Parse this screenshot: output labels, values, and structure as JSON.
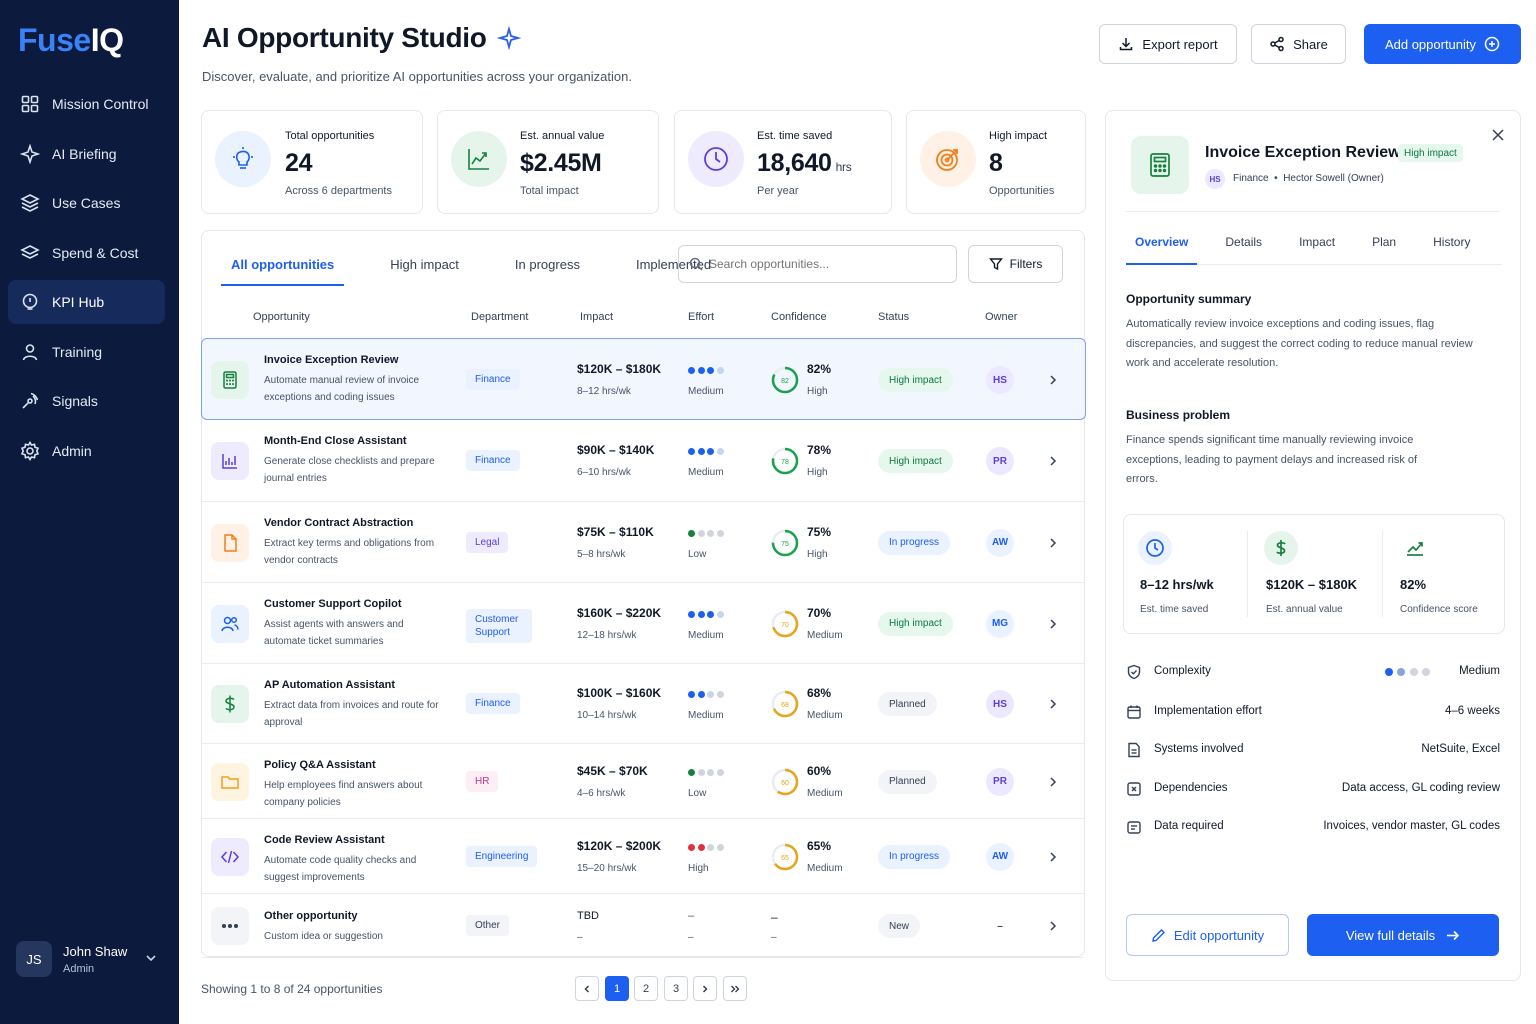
{
  "brand": {
    "part1": "Fuse",
    "part2": "IQ"
  },
  "sidebar": {
    "items": [
      {
        "label": "Mission Control",
        "icon": "grid-icon"
      },
      {
        "label": "AI Briefing",
        "icon": "sparkle-icon"
      },
      {
        "label": "Use Cases",
        "icon": "layers-icon"
      },
      {
        "label": "Spend & Cost",
        "icon": "stack-icon"
      },
      {
        "label": "KPI Hub",
        "icon": "lightbulb-icon",
        "active": true
      },
      {
        "label": "Training",
        "icon": "person-icon"
      },
      {
        "label": "Signals",
        "icon": "signal-icon"
      },
      {
        "label": "Admin",
        "icon": "gear-icon"
      }
    ],
    "user": {
      "initials": "JS",
      "name": "John Shaw",
      "role": "Admin"
    }
  },
  "header": {
    "title": "AI Opportunity Studio",
    "subtitle": "Discover, evaluate, and prioritize AI opportunities across your organization.",
    "export_label": "Export report",
    "share_label": "Share",
    "add_label": "Add opportunity"
  },
  "stats": [
    {
      "label": "Total opportunities",
      "value": "24",
      "unit": "",
      "sub": "Across 6 departments"
    },
    {
      "label": "Est. annual value",
      "value": "$2.45M",
      "unit": "",
      "sub": "Total impact"
    },
    {
      "label": "Est. time saved",
      "value": "18,640",
      "unit": "hrs",
      "sub": "Per year"
    },
    {
      "label": "High impact",
      "value": "8",
      "unit": "",
      "sub": "Opportunities"
    }
  ],
  "table": {
    "tabs": [
      "All opportunities",
      "High impact",
      "In progress",
      "Implemented"
    ],
    "search_placeholder": "Search opportunities...",
    "filters_label": "Filters",
    "columns": [
      "Opportunity",
      "Department",
      "Impact",
      "Effort",
      "Confidence",
      "Status",
      "Owner"
    ],
    "rows": [
      {
        "name": "Invoice Exception Review",
        "desc": "Automate manual review of invoice exceptions and coding issues",
        "dept": "Finance",
        "impact": "$120K – $180K",
        "hours": "8–12 hrs/wk",
        "effort": "Medium",
        "effort_level": 3,
        "confidence": 82,
        "conf_label": "82%",
        "conf_level": "High",
        "status": "High impact",
        "owner": "HS",
        "icon": "calculator-icon"
      },
      {
        "name": "Month-End Close Assistant",
        "desc": "Generate close checklists and prepare journal entries",
        "dept": "Finance",
        "impact": "$90K – $140K",
        "hours": "6–10 hrs/wk",
        "effort": "Medium",
        "effort_level": 3,
        "confidence": 78,
        "conf_label": "78%",
        "conf_level": "High",
        "status": "High impact",
        "owner": "PR",
        "icon": "chart-icon"
      },
      {
        "name": "Vendor Contract Abstraction",
        "desc": "Extract key terms and obligations from vendor contracts",
        "dept": "Legal",
        "impact": "$75K – $110K",
        "hours": "5–8 hrs/wk",
        "effort": "Low",
        "effort_level": 1,
        "confidence": 75,
        "conf_label": "75%",
        "conf_level": "High",
        "status": "In progress",
        "owner": "AW",
        "icon": "document-icon"
      },
      {
        "name": "Customer Support Copilot",
        "desc": "Assist agents with answers and automate ticket summaries",
        "dept": "Customer Support",
        "impact": "$160K – $220K",
        "hours": "12–18 hrs/wk",
        "effort": "Medium",
        "effort_level": 3,
        "confidence": 70,
        "conf_label": "70%",
        "conf_level": "Medium",
        "status": "High impact",
        "owner": "MG",
        "icon": "users-icon"
      },
      {
        "name": "AP Automation Assistant",
        "desc": "Extract data from invoices and route for approval",
        "dept": "Finance",
        "impact": "$100K – $160K",
        "hours": "10–14 hrs/wk",
        "effort": "Medium",
        "effort_level": 2,
        "confidence": 68,
        "conf_label": "68%",
        "conf_level": "Medium",
        "status": "Planned",
        "owner": "HS",
        "icon": "dollar-icon"
      },
      {
        "name": "Policy Q&A Assistant",
        "desc": "Help employees find answers about company policies",
        "dept": "HR",
        "impact": "$45K – $70K",
        "hours": "4–6 hrs/wk",
        "effort": "Low",
        "effort_level": 1,
        "confidence": 60,
        "conf_label": "60%",
        "conf_level": "Medium",
        "status": "Planned",
        "owner": "PR",
        "icon": "folder-icon"
      },
      {
        "name": "Code Review Assistant",
        "desc": "Automate code quality checks and suggest improvements",
        "dept": "Engineering",
        "impact": "$120K – $200K",
        "hours": "15–20 hrs/wk",
        "effort": "High",
        "effort_level": 2,
        "confidence": 65,
        "conf_label": "65%",
        "conf_level": "Medium",
        "status": "In progress",
        "owner": "AW",
        "icon": "code-icon"
      },
      {
        "name": "Other opportunity",
        "desc": "Custom idea or suggestion",
        "dept": "Other",
        "impact": "TBD",
        "hours": "–",
        "effort": "–",
        "effort_top": "–",
        "confidence": null,
        "conf_label": "–",
        "conf_level": "–",
        "status": "New",
        "owner": "–",
        "icon": "more-icon"
      }
    ],
    "footer": "Showing 1 to 8 of 24 opportunities",
    "pages": [
      "1",
      "2",
      "3"
    ]
  },
  "detail": {
    "title": "Invoice Exception Review",
    "badge": "High impact",
    "owner_initials": "HS",
    "dept": "Finance",
    "owner": "Hector Sowell (Owner)",
    "tabs": [
      "Overview",
      "Details",
      "Impact",
      "Plan",
      "History"
    ],
    "summary_title": "Opportunity summary",
    "summary": "Automatically review invoice exceptions and coding issues, flag discrepancies, and suggest the correct coding to reduce manual review work and accelerate resolution.",
    "problem_title": "Business problem",
    "problem": "Finance spends significant time manually reviewing invoice exceptions, leading to payment delays and increased risk of errors.",
    "metrics": [
      {
        "value": "8–12 hrs/wk",
        "label": "Est. time saved"
      },
      {
        "value": "$120K – $180K",
        "label": "Est. annual value"
      },
      {
        "value": "82%",
        "label": "Confidence score"
      }
    ],
    "props": [
      {
        "label": "Complexity",
        "value": "Medium",
        "level": 2
      },
      {
        "label": "Implementation effort",
        "value": "4–6 weeks"
      },
      {
        "label": "Systems involved",
        "value": "NetSuite, Excel"
      },
      {
        "label": "Dependencies",
        "value": "Data access, GL coding review"
      },
      {
        "label": "Data required",
        "value": "Invoices, vendor master, GL codes"
      }
    ],
    "edit_label": "Edit opportunity",
    "view_label": "View full details"
  },
  "colors": {
    "accent": "#1d5ff0",
    "sidebar": "#0b1a3d",
    "high": "#0b7a3e",
    "progress": "#1d5ff0"
  }
}
